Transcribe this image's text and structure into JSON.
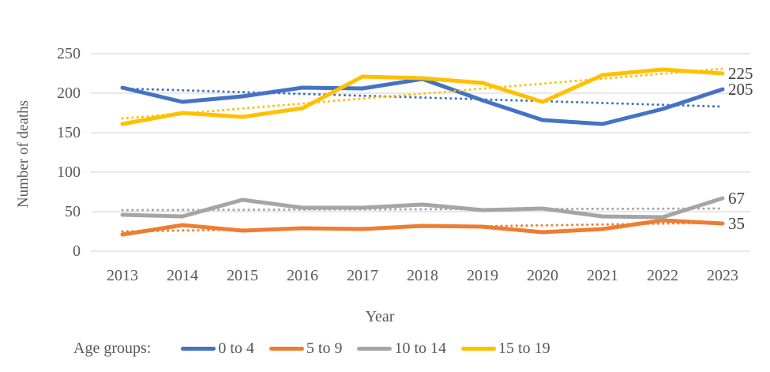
{
  "chart_data": {
    "type": "line",
    "title": "",
    "xlabel": "Year",
    "ylabel": "Number of deaths",
    "legend_title": "Age groups:",
    "legend_position": "bottom",
    "grid": true,
    "grid_color": "#D9D9D9",
    "axis_text_color": "#595959",
    "end_label_color": "#404040",
    "categories": [
      "2013",
      "2014",
      "2015",
      "2016",
      "2017",
      "2018",
      "2019",
      "2020",
      "2021",
      "2022",
      "2023"
    ],
    "yticks": [
      0,
      50,
      100,
      150,
      200,
      250
    ],
    "ylim": [
      0,
      250
    ],
    "series": [
      {
        "name": "0 to 4",
        "color": "#4472C4",
        "values": [
          207,
          189,
          196,
          207,
          206,
          218,
          191,
          166,
          161,
          180,
          205
        ],
        "trend": [
          206,
          183
        ],
        "end_label": "205"
      },
      {
        "name": "5 to 9",
        "color": "#ED7D31",
        "values": [
          21,
          33,
          26,
          29,
          28,
          32,
          31,
          24,
          28,
          39,
          35
        ],
        "trend": [
          25,
          36
        ],
        "end_label": "35"
      },
      {
        "name": "10 to 14",
        "color": "#A5A5A5",
        "values": [
          46,
          44,
          65,
          55,
          55,
          59,
          52,
          54,
          44,
          43,
          67
        ],
        "trend": [
          52,
          54
        ],
        "end_label": "67"
      },
      {
        "name": "15 to 19",
        "color": "#FFC000",
        "values": [
          161,
          175,
          170,
          181,
          221,
          219,
          213,
          189,
          223,
          230,
          225
        ],
        "trend": [
          168,
          231
        ],
        "end_label": "225"
      }
    ]
  }
}
